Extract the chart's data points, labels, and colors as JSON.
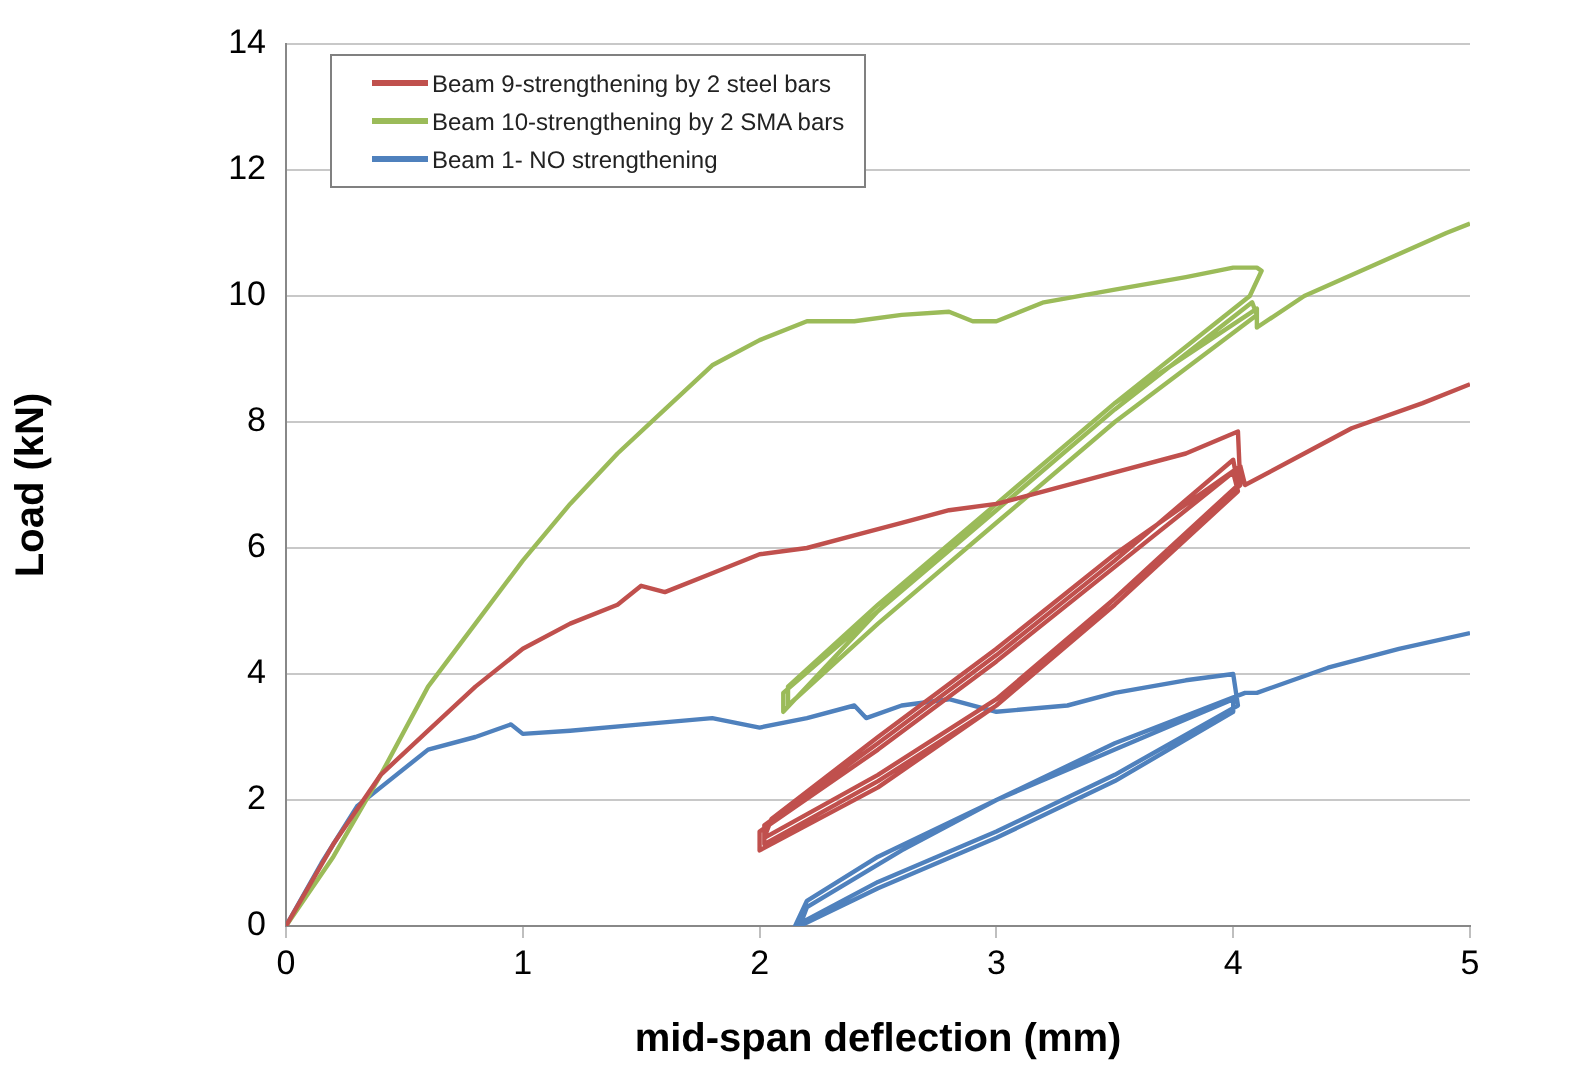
{
  "chart_data": {
    "type": "line",
    "xlabel": "mid-span deflection (mm)",
    "ylabel": "Load (kN)",
    "xlim": [
      0,
      5
    ],
    "xticks": [
      0,
      1,
      2,
      3,
      4,
      5
    ],
    "ylim": [
      0,
      14
    ],
    "yticks": [
      0,
      2,
      4,
      6,
      8,
      10,
      12,
      14
    ],
    "grid": "y",
    "legend": "top left",
    "marker": "none",
    "line_style": "solid",
    "series": [
      {
        "name": "Beam 9-strengthening by 2 steel bars",
        "color": "#c0504d",
        "x": [
          0,
          0.2,
          0.4,
          0.6,
          0.8,
          1,
          1.2,
          1.4,
          1.5,
          1.6,
          1.8,
          2,
          2.2,
          2.4,
          2.6,
          2.8,
          3,
          3.2,
          3.5,
          3.8,
          4.02,
          4.03,
          3.5,
          3,
          2.5,
          2,
          2,
          2.5,
          3,
          3.5,
          4,
          4.02,
          3.5,
          3,
          2.5,
          2.02,
          2.02,
          2.5,
          3,
          3.5,
          4,
          4.02,
          3.5,
          3,
          2.5,
          2.02,
          2.05,
          2.5,
          3,
          3.5,
          4.03,
          4.05,
          4.3,
          4.5,
          4.8,
          5
        ],
        "values": [
          0,
          1.3,
          2.4,
          3.1,
          3.8,
          4.4,
          4.8,
          5.1,
          5.4,
          5.3,
          5.6,
          5.9,
          6,
          6.2,
          6.4,
          6.6,
          6.7,
          6.9,
          7.2,
          7.5,
          7.85,
          7,
          5.2,
          3.5,
          2.2,
          1.2,
          1.5,
          2.8,
          4.2,
          5.7,
          7.2,
          6.9,
          5.1,
          3.5,
          2.3,
          1.3,
          1.6,
          2.9,
          4.3,
          5.8,
          7.4,
          7,
          5.2,
          3.6,
          2.4,
          1.4,
          1.7,
          3,
          4.4,
          5.9,
          7.3,
          7,
          7.5,
          7.9,
          8.3,
          8.6
        ]
      },
      {
        "name": "Beam 10-strengthening by 2 SMA bars",
        "color": "#9bbb59",
        "x": [
          0,
          0.2,
          0.4,
          0.6,
          0.8,
          1,
          1.2,
          1.4,
          1.6,
          1.8,
          2,
          2.2,
          2.4,
          2.6,
          2.8,
          2.9,
          3,
          3.2,
          3.5,
          3.8,
          4,
          4.1,
          4.12,
          4.07,
          3.5,
          3,
          2.5,
          2.1,
          2.1,
          2.5,
          3,
          3.5,
          4.08,
          4.1,
          3.5,
          3,
          2.5,
          2.12,
          2.12,
          2.5,
          3,
          3.5,
          4.1,
          4.1,
          4.3,
          4.6,
          4.9,
          5
        ],
        "values": [
          0,
          1.1,
          2.4,
          3.8,
          4.8,
          5.8,
          6.7,
          7.5,
          8.2,
          8.9,
          9.3,
          9.6,
          9.6,
          9.7,
          9.75,
          9.6,
          9.6,
          9.9,
          10.1,
          10.3,
          10.45,
          10.45,
          10.4,
          10,
          8.3,
          6.7,
          5,
          3.4,
          3.7,
          5,
          6.6,
          8.2,
          9.9,
          9.7,
          8,
          6.4,
          4.8,
          3.5,
          3.8,
          5.1,
          6.7,
          8.3,
          9.8,
          9.5,
          10,
          10.5,
          11,
          11.15
        ]
      },
      {
        "name": "Beam 1- NO strengthening",
        "color": "#4f81bd",
        "x": [
          0,
          0.15,
          0.3,
          0.4,
          0.6,
          0.8,
          0.95,
          1,
          1.2,
          1.5,
          1.8,
          2,
          2.2,
          2.4,
          2.45,
          2.6,
          2.8,
          3,
          3.3,
          3.5,
          3.8,
          4,
          4.02,
          3.5,
          3,
          2.5,
          2.15,
          2.2,
          2.5,
          3,
          3.5,
          4,
          4,
          3.5,
          3,
          2.5,
          2.17,
          2.2,
          2.6,
          3,
          3.5,
          4.05,
          4.1,
          4.4,
          4.7,
          5
        ],
        "values": [
          0,
          1,
          1.9,
          2.2,
          2.8,
          3,
          3.2,
          3.05,
          3.1,
          3.2,
          3.3,
          3.15,
          3.3,
          3.5,
          3.3,
          3.5,
          3.6,
          3.4,
          3.5,
          3.7,
          3.9,
          4,
          3.5,
          2.4,
          1.5,
          0.7,
          0,
          0.4,
          1.1,
          2,
          2.8,
          3.6,
          3.4,
          2.3,
          1.4,
          0.6,
          0,
          0.3,
          1.2,
          2,
          2.9,
          3.7,
          3.7,
          4.1,
          4.4,
          4.65
        ]
      }
    ]
  }
}
